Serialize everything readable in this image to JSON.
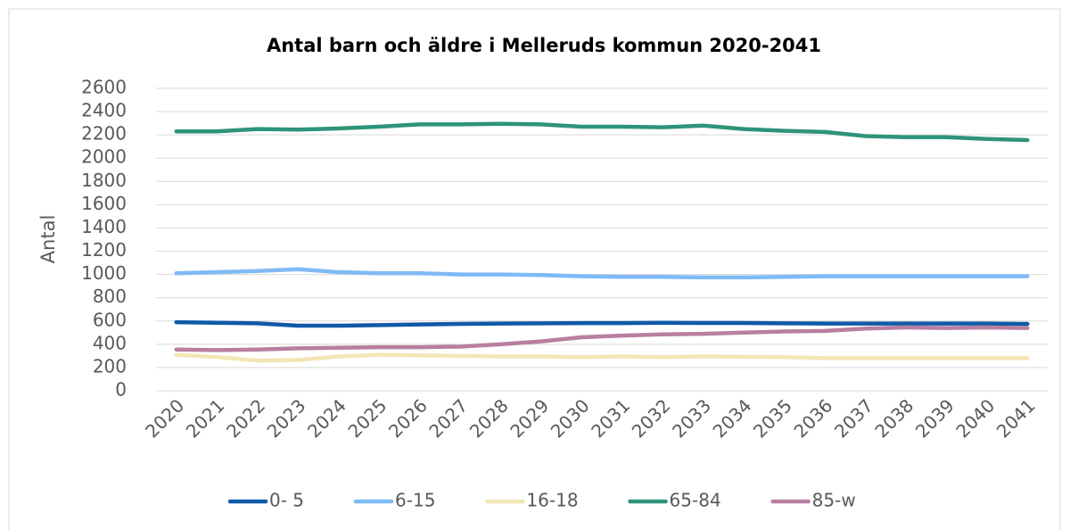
{
  "chart_data": {
    "type": "line",
    "title": "Antal barn och äldre i Melleruds kommun 2020-2041",
    "ylabel": "Antal",
    "categories": [
      "2020",
      "2021",
      "2022",
      "2023",
      "2024",
      "2025",
      "2026",
      "2027",
      "2028",
      "2029",
      "2030",
      "2031",
      "2032",
      "2033",
      "2034",
      "2035",
      "2036",
      "2037",
      "2038",
      "2039",
      "2040",
      "2041"
    ],
    "ylim": [
      0,
      2600
    ],
    "yticks": [
      0,
      200,
      400,
      600,
      800,
      1000,
      1200,
      1400,
      1600,
      1800,
      2000,
      2200,
      2400,
      2600
    ],
    "grid": true,
    "legend": "bottom",
    "series": [
      {
        "name": "0- 5",
        "color": "#0f5aa8",
        "values": [
          590,
          585,
          580,
          560,
          560,
          565,
          570,
          575,
          578,
          580,
          582,
          582,
          585,
          583,
          583,
          580,
          578,
          578,
          578,
          578,
          578,
          575
        ]
      },
      {
        "name": "6-15",
        "color": "#7fbaf5",
        "values": [
          1010,
          1020,
          1030,
          1045,
          1020,
          1010,
          1010,
          1000,
          1000,
          995,
          985,
          980,
          980,
          975,
          975,
          980,
          985,
          985,
          985,
          985,
          985,
          985
        ]
      },
      {
        "name": "16-18",
        "color": "#f2e6b5",
        "values": [
          310,
          290,
          260,
          265,
          295,
          310,
          305,
          300,
          295,
          295,
          290,
          295,
          290,
          295,
          292,
          290,
          280,
          280,
          280,
          280,
          280,
          280
        ]
      },
      {
        "name": "65-84",
        "color": "#2e9479",
        "values": [
          2230,
          2230,
          2250,
          2245,
          2255,
          2270,
          2290,
          2290,
          2295,
          2290,
          2270,
          2270,
          2265,
          2280,
          2250,
          2235,
          2225,
          2190,
          2180,
          2180,
          2165,
          2155
        ]
      },
      {
        "name": "85-w",
        "color": "#b87fa0",
        "values": [
          355,
          350,
          355,
          365,
          370,
          375,
          375,
          380,
          400,
          425,
          460,
          475,
          485,
          490,
          500,
          510,
          515,
          535,
          545,
          540,
          545,
          540
        ]
      }
    ]
  }
}
